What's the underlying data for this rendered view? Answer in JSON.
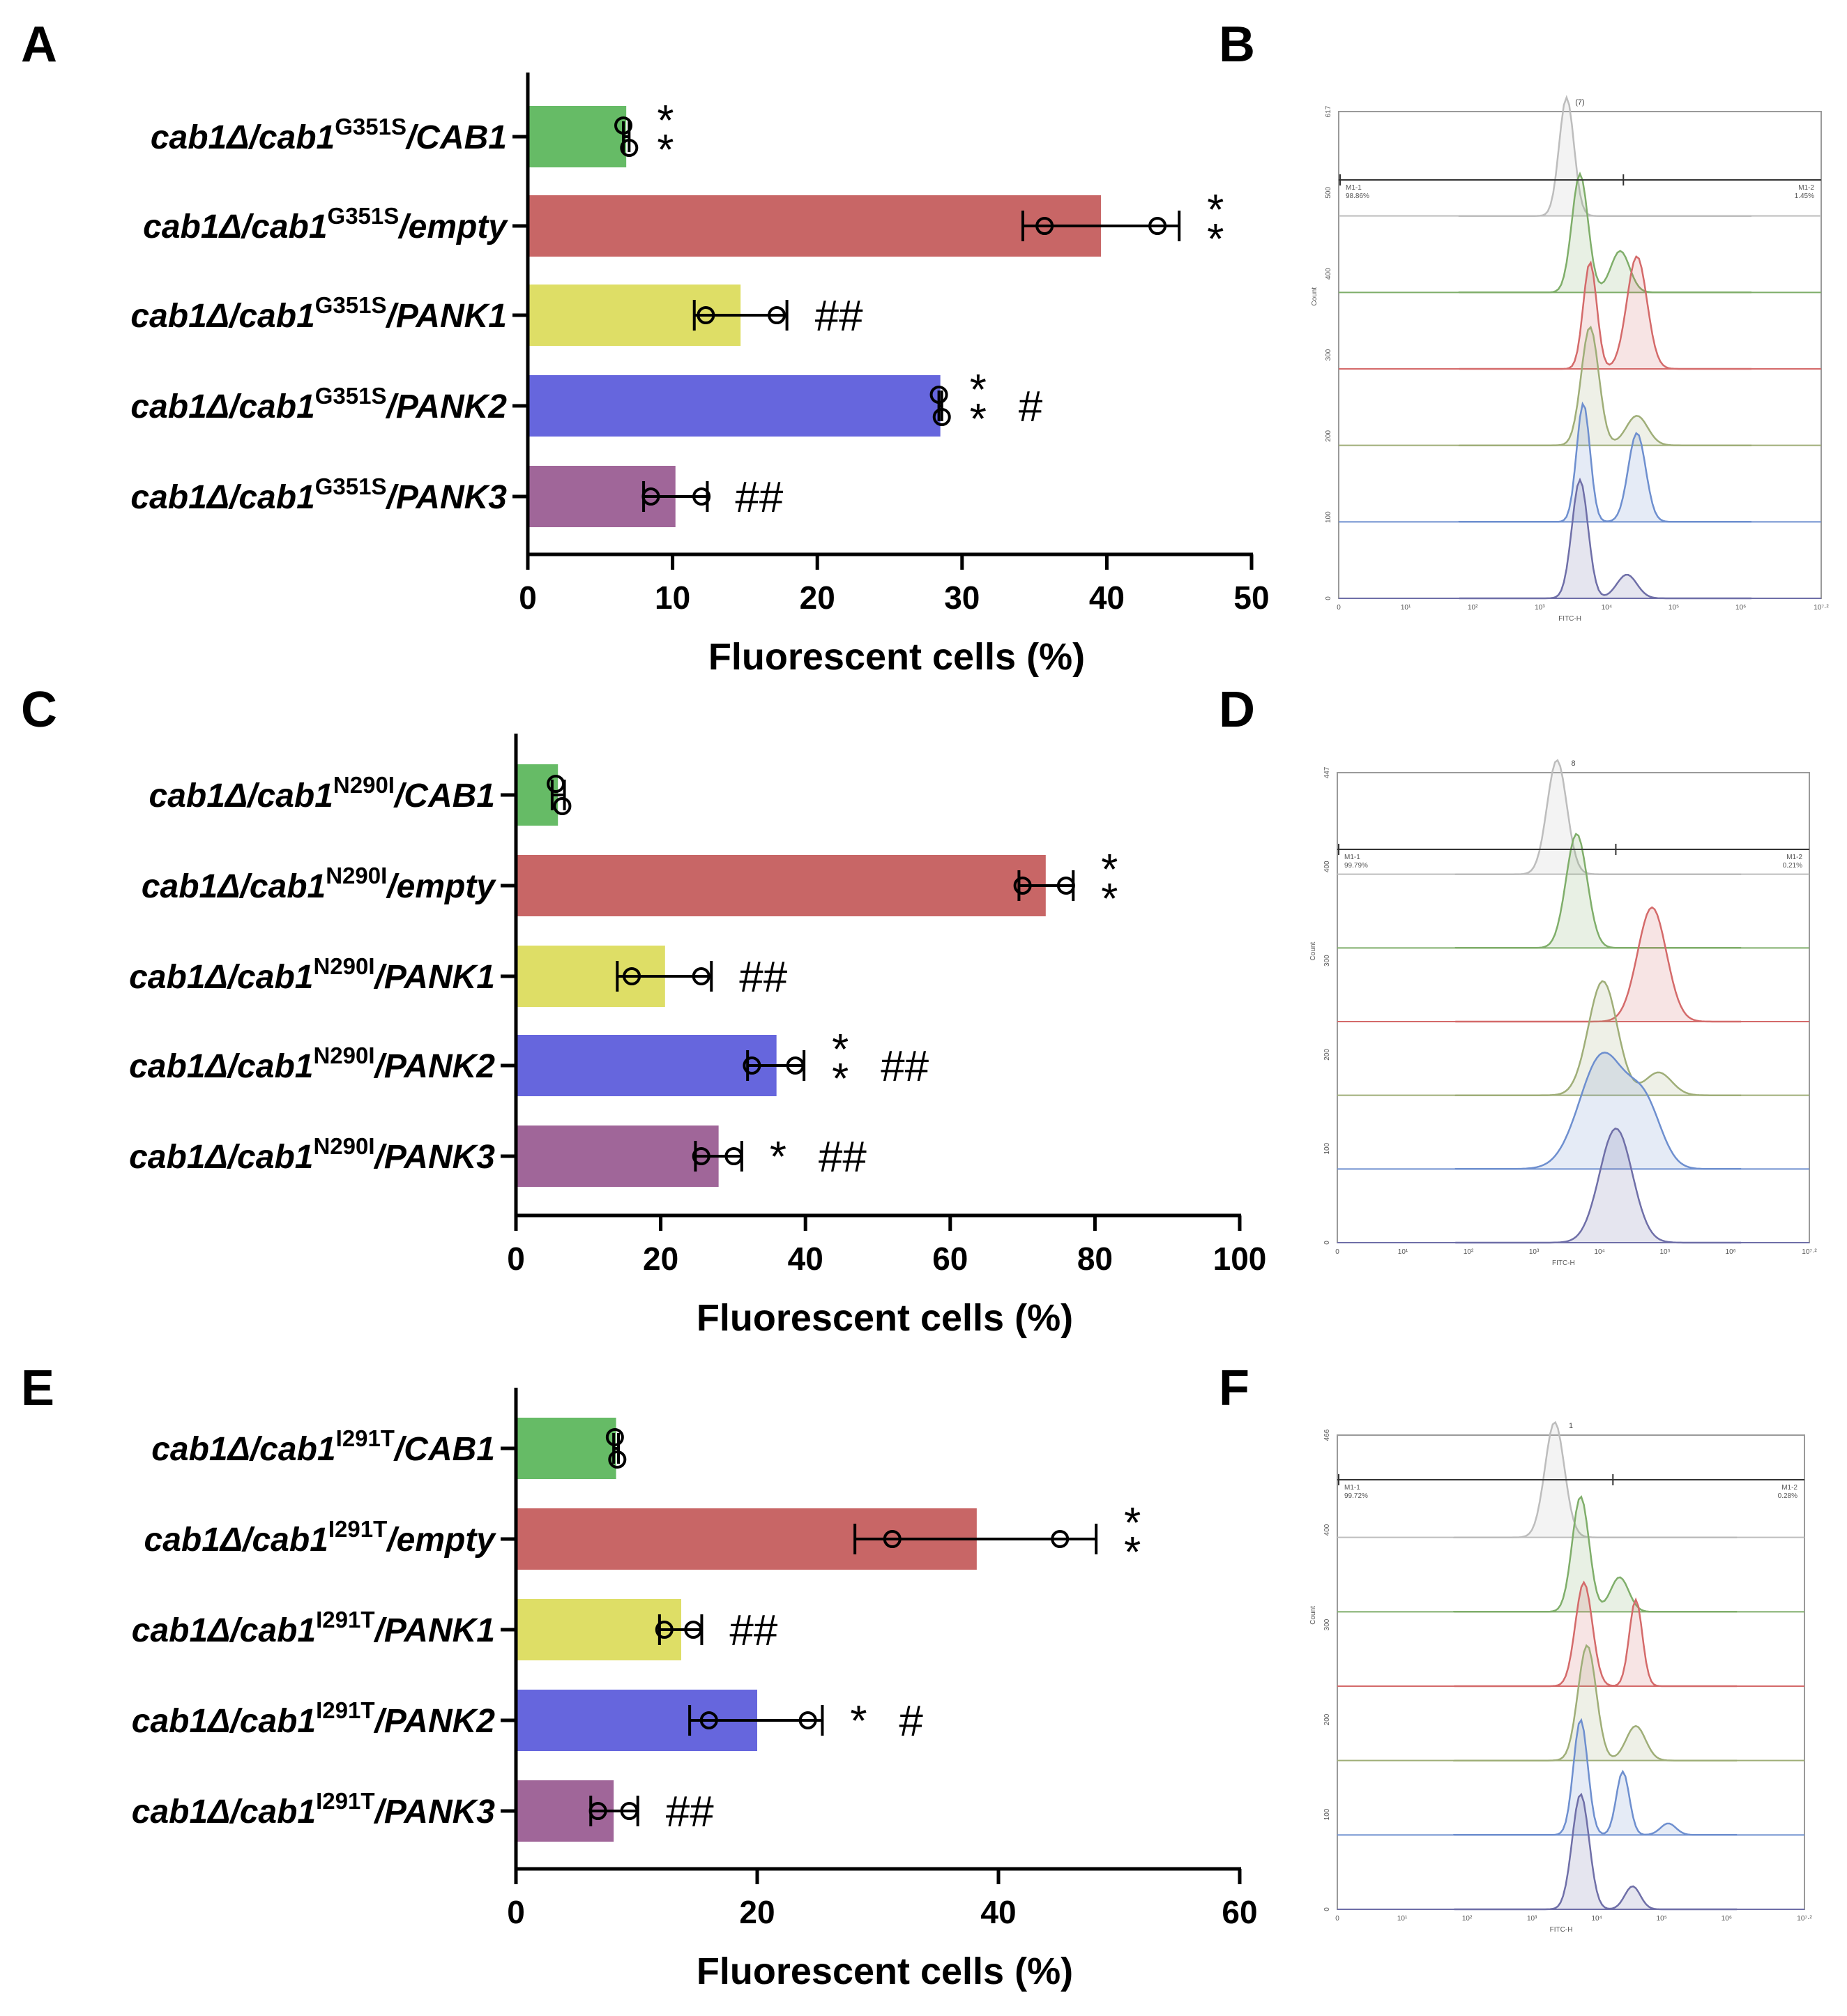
{
  "figure": {
    "panels": [
      "A",
      "B",
      "C",
      "D",
      "E",
      "F"
    ]
  },
  "chart_data": [
    {
      "panel": "A",
      "type": "bar",
      "orientation": "horizontal",
      "mutation": "G351S",
      "categories": [
        {
          "pre": "cab1Δ/cab1",
          "sup": "G351S",
          "post": "/CAB1"
        },
        {
          "pre": "cab1Δ/cab1",
          "sup": "G351S",
          "post": "/empty"
        },
        {
          "pre": "cab1Δ/cab1",
          "sup": "G351S",
          "post": "/PANK1"
        },
        {
          "pre": "cab1Δ/cab1",
          "sup": "G351S",
          "post": "/PANK2"
        },
        {
          "pre": "cab1Δ/cab1",
          "sup": "G351S",
          "post": "/PANK3"
        }
      ],
      "colors": [
        "#66bb66",
        "#c86666",
        "#dede66",
        "#6666dd",
        "#a06699"
      ],
      "values": [
        6.8,
        39.6,
        14.7,
        28.5,
        10.2
      ],
      "error_low": [
        6.6,
        34.2,
        11.5,
        28.4,
        8.0
      ],
      "error_high": [
        7.0,
        45.0,
        17.9,
        28.6,
        12.4
      ],
      "points": [
        [
          6.6,
          7.0
        ],
        [
          35.7,
          43.5
        ],
        [
          12.3,
          17.2
        ],
        [
          28.4,
          28.6
        ],
        [
          8.5,
          12.0
        ]
      ],
      "annotations": [
        {
          "star": "**",
          "hash": ""
        },
        {
          "star": "**",
          "hash": ""
        },
        {
          "star": "",
          "hash": "##"
        },
        {
          "star": "**",
          "hash": "#"
        },
        {
          "star": "",
          "hash": "##"
        }
      ],
      "xlim": [
        0,
        50
      ],
      "xticks": [
        0,
        10,
        20,
        30,
        40,
        50
      ],
      "xlabel": "Fluorescent cells (%)"
    },
    {
      "panel": "C",
      "type": "bar",
      "orientation": "horizontal",
      "mutation": "N290I",
      "categories": [
        {
          "pre": "cab1Δ/cab1",
          "sup": "N290I",
          "post": "/CAB1"
        },
        {
          "pre": "cab1Δ/cab1",
          "sup": "N290I",
          "post": "/empty"
        },
        {
          "pre": "cab1Δ/cab1",
          "sup": "N290I",
          "post": "/PANK1"
        },
        {
          "pre": "cab1Δ/cab1",
          "sup": "N290I",
          "post": "/PANK2"
        },
        {
          "pre": "cab1Δ/cab1",
          "sup": "N290I",
          "post": "/PANK3"
        }
      ],
      "colors": [
        "#66bb66",
        "#c86666",
        "#dede66",
        "#6666dd",
        "#a06699"
      ],
      "values": [
        5.8,
        73.2,
        20.6,
        36.0,
        28.0
      ],
      "error_low": [
        5.0,
        69.5,
        14.0,
        32.0,
        24.8
      ],
      "error_high": [
        6.7,
        77.0,
        27.0,
        39.8,
        31.2
      ],
      "points": [
        [
          5.5,
          6.4
        ],
        [
          70.0,
          76.0
        ],
        [
          16.0,
          25.6
        ],
        [
          32.6,
          38.6
        ],
        [
          25.6,
          30.1
        ]
      ],
      "annotations": [
        {
          "star": "",
          "hash": ""
        },
        {
          "star": "**",
          "hash": ""
        },
        {
          "star": "",
          "hash": "##"
        },
        {
          "star": "**",
          "hash": "##"
        },
        {
          "star": "*",
          "hash": "##"
        }
      ],
      "xlim": [
        0,
        100
      ],
      "xticks": [
        0,
        20,
        40,
        60,
        80,
        100
      ],
      "xlabel": "Fluorescent cells (%)"
    },
    {
      "panel": "E",
      "type": "bar",
      "orientation": "horizontal",
      "mutation": "I291T",
      "categories": [
        {
          "pre": "cab1Δ/cab1",
          "sup": "I291T",
          "post": "/CAB1"
        },
        {
          "pre": "cab1Δ/cab1",
          "sup": "I291T",
          "post": "/empty"
        },
        {
          "pre": "cab1Δ/cab1",
          "sup": "I291T",
          "post": "/PANK1"
        },
        {
          "pre": "cab1Δ/cab1",
          "sup": "I291T",
          "post": "/PANK2"
        },
        {
          "pre": "cab1Δ/cab1",
          "sup": "I291T",
          "post": "/PANK3"
        }
      ],
      "colors": [
        "#66bb66",
        "#c86666",
        "#dede66",
        "#6666dd",
        "#a06699"
      ],
      "values": [
        8.3,
        38.2,
        13.7,
        20.0,
        8.1
      ],
      "error_low": [
        8.1,
        28.1,
        11.9,
        14.4,
        6.2
      ],
      "error_high": [
        8.5,
        48.1,
        15.4,
        25.4,
        10.1
      ],
      "points": [
        [
          8.2,
          8.4
        ],
        [
          31.2,
          45.1
        ],
        [
          12.3,
          14.7
        ],
        [
          16.0,
          24.2
        ],
        [
          6.8,
          9.4
        ]
      ],
      "annotations": [
        {
          "star": "",
          "hash": ""
        },
        {
          "star": "**",
          "hash": ""
        },
        {
          "star": "",
          "hash": "##"
        },
        {
          "star": "*",
          "hash": "#"
        },
        {
          "star": "",
          "hash": "##"
        }
      ],
      "xlim": [
        0,
        60
      ],
      "xticks": [
        0,
        20,
        40,
        60
      ],
      "xlabel": "Fluorescent cells (%)"
    },
    {
      "panel": "B",
      "type": "area",
      "title": "(7)",
      "x_axis_label": "FITC-H",
      "y_axis_label": "Count",
      "gates": [
        {
          "label": "M1-1",
          "value": "98.86%"
        },
        {
          "label": "M1-2",
          "value": "1.45%"
        }
      ],
      "x_ticks": [
        "0",
        "10¹",
        "10²",
        "10³",
        "10⁴",
        "10⁵",
        "10⁶",
        "10⁷·²"
      ],
      "y_ticks": [
        "0",
        "100",
        "200",
        "300",
        "400",
        "500",
        "617"
      ],
      "histograms": [
        {
          "color": "#bdbdbd",
          "peaks": [
            [
              3.4,
              1.0,
              0.11
            ]
          ]
        },
        {
          "color": "#7fae6a",
          "peaks": [
            [
              3.6,
              1.0,
              0.12
            ],
            [
              4.2,
              0.35,
              0.14
            ]
          ]
        },
        {
          "color": "#d46a6a",
          "peaks": [
            [
              3.75,
              0.9,
              0.1
            ],
            [
              4.45,
              0.95,
              0.15
            ]
          ]
        },
        {
          "color": "#9fae78",
          "peaks": [
            [
              3.75,
              1.0,
              0.13
            ],
            [
              4.45,
              0.25,
              0.16
            ]
          ]
        },
        {
          "color": "#6e8fcf",
          "peaks": [
            [
              3.65,
              1.0,
              0.1
            ],
            [
              4.45,
              0.75,
              0.13
            ]
          ]
        },
        {
          "color": "#6f6fa8",
          "peaks": [
            [
              3.6,
              1.0,
              0.12
            ],
            [
              4.3,
              0.2,
              0.15
            ]
          ]
        }
      ]
    },
    {
      "panel": "D",
      "type": "area",
      "title": "8",
      "x_axis_label": "FITC-H",
      "y_axis_label": "Count",
      "gates": [
        {
          "label": "M1-1",
          "value": "99.79%"
        },
        {
          "label": "M1-2",
          "value": "0.21%"
        }
      ],
      "x_ticks": [
        "0",
        "10¹",
        "10²",
        "10³",
        "10⁴",
        "10⁵",
        "10⁶",
        "10⁷·²"
      ],
      "y_ticks": [
        "0",
        "100",
        "200",
        "300",
        "400",
        "447"
      ],
      "histograms": [
        {
          "color": "#bdbdbd",
          "peaks": [
            [
              3.35,
              1.0,
              0.15
            ]
          ]
        },
        {
          "color": "#7fae6a",
          "peaks": [
            [
              3.65,
              1.0,
              0.16
            ]
          ]
        },
        {
          "color": "#d46a6a",
          "peaks": [
            [
              4.8,
              1.0,
              0.22
            ]
          ]
        },
        {
          "color": "#9fae78",
          "peaks": [
            [
              4.05,
              1.0,
              0.22
            ],
            [
              4.9,
              0.2,
              0.2
            ]
          ]
        },
        {
          "color": "#6e8fcf",
          "peaks": [
            [
              4.05,
              1.0,
              0.35
            ],
            [
              4.7,
              0.5,
              0.25
            ]
          ]
        },
        {
          "color": "#6f6fa8",
          "peaks": [
            [
              4.25,
              1.0,
              0.25
            ]
          ]
        }
      ]
    },
    {
      "panel": "F",
      "type": "area",
      "title": "1",
      "x_axis_label": "FITC-H",
      "y_axis_label": "Count",
      "gates": [
        {
          "label": "M1-1",
          "value": "99.72%"
        },
        {
          "label": "M1-2",
          "value": "0.28%"
        }
      ],
      "x_ticks": [
        "0",
        "10¹",
        "10²",
        "10³",
        "10⁴",
        "10⁵",
        "10⁶",
        "10⁷·²"
      ],
      "y_ticks": [
        "0",
        "100",
        "200",
        "300",
        "400",
        "466"
      ],
      "histograms": [
        {
          "color": "#bdbdbd",
          "peaks": [
            [
              3.35,
              1.0,
              0.15
            ]
          ]
        },
        {
          "color": "#7fae6a",
          "peaks": [
            [
              3.75,
              1.0,
              0.13
            ],
            [
              4.35,
              0.3,
              0.14
            ]
          ]
        },
        {
          "color": "#d46a6a",
          "peaks": [
            [
              3.8,
              0.9,
              0.13
            ],
            [
              4.6,
              0.75,
              0.1
            ]
          ]
        },
        {
          "color": "#9fae78",
          "peaks": [
            [
              3.85,
              1.0,
              0.14
            ],
            [
              4.6,
              0.3,
              0.15
            ]
          ]
        },
        {
          "color": "#6e8fcf",
          "peaks": [
            [
              3.75,
              1.0,
              0.11
            ],
            [
              4.4,
              0.55,
              0.1
            ],
            [
              5.1,
              0.1,
              0.12
            ]
          ]
        },
        {
          "color": "#6f6fa8",
          "peaks": [
            [
              3.75,
              1.0,
              0.13
            ],
            [
              4.55,
              0.2,
              0.12
            ]
          ]
        }
      ]
    }
  ]
}
